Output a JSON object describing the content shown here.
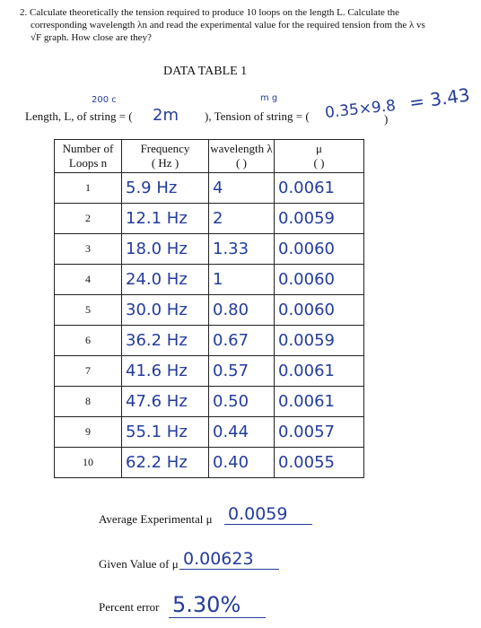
{
  "question": [
    "2.  Calculate theoretically the tension required to produce 10 loops on the length L. Calculate the",
    "corresponding wavelength λn and read the experimental value for the required tension from the λ vs",
    "√F graph. How close are they?"
  ],
  "title": "DATA TABLE 1",
  "length_line": {
    "annotation_left": "200 c",
    "annotation_right": "m g",
    "length_label": "Length, L, of string = (",
    "length_value": "2m",
    "tension_label": "), Tension of string = (",
    "tension_value": "0.35×9.8",
    "close": ")",
    "result": "= 3.43"
  },
  "table": {
    "headers": [
      [
        "Number of",
        "Loops n"
      ],
      [
        "Frequency",
        "( Hz )"
      ],
      [
        "wavelength λ",
        "(        )"
      ],
      [
        "μ",
        "(        )"
      ]
    ],
    "rows": [
      [
        1,
        "5.9 Hz",
        "4",
        "0.0061"
      ],
      [
        2,
        "12.1 Hz",
        "2",
        "0.0059"
      ],
      [
        3,
        "18.0 Hz",
        "1.33",
        "0.0060"
      ],
      [
        4,
        "24.0 Hz",
        "1",
        "0.0060"
      ],
      [
        5,
        "30.0 Hz",
        "0.80",
        "0.0060"
      ],
      [
        6,
        "36.2 Hz",
        "0.67",
        "0.0059"
      ],
      [
        7,
        "41.6 Hz",
        "0.57",
        "0.0061"
      ],
      [
        8,
        "47.6 Hz",
        "0.50",
        "0.0061"
      ],
      [
        9,
        "55.1 Hz",
        "0.44",
        "0.0057"
      ],
      [
        10,
        "62.2 Hz",
        "0.40",
        "0.0055"
      ]
    ]
  },
  "summary": [
    {
      "label": "Average Experimental μ",
      "value": "0.0059"
    },
    {
      "label": "Given Value of μ",
      "value": "0.00623"
    },
    {
      "label": "Percent error",
      "value": "5.30%"
    }
  ]
}
